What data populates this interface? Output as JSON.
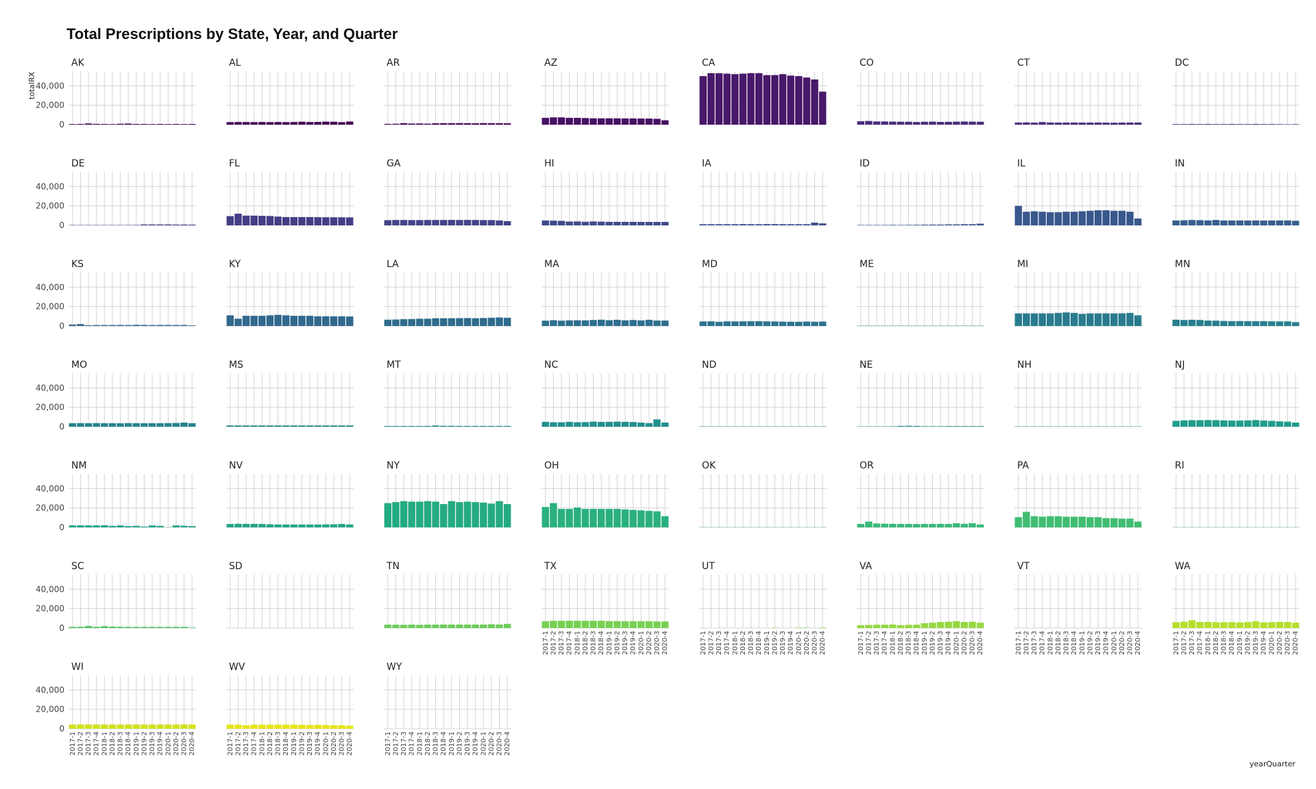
{
  "chart_data": {
    "type": "bar",
    "title": "Total Prescriptions by State, Year, and Quarter",
    "xlabel": "yearQuarter",
    "ylabel": "totalRX",
    "ylim": [
      0,
      55000
    ],
    "y_ticks": [
      0,
      20000,
      40000
    ],
    "y_tick_labels": [
      "0",
      "20,000",
      "40,000"
    ],
    "grid": true,
    "facets_per_row": 8,
    "categories": [
      "2017-1",
      "2017-2",
      "2017-3",
      "2017-4",
      "2018-1",
      "2018-2",
      "2018-3",
      "2018-4",
      "2019-1",
      "2019-2",
      "2019-3",
      "2019-4",
      "2020-1",
      "2020-2",
      "2020-3",
      "2020-4"
    ],
    "panels": [
      {
        "state": "AK",
        "color": "#440154",
        "values": [
          600,
          700,
          1200,
          800,
          700,
          600,
          900,
          1100,
          700,
          700,
          600,
          700,
          600,
          700,
          600,
          700
        ]
      },
      {
        "state": "AL",
        "color": "#440154",
        "values": [
          2600,
          2700,
          2700,
          2600,
          2700,
          2600,
          2700,
          2600,
          2700,
          3000,
          2700,
          2800,
          3100,
          3000,
          2600,
          3200
        ]
      },
      {
        "state": "AR",
        "color": "#46085c",
        "values": [
          800,
          900,
          1500,
          1100,
          1200,
          1000,
          1400,
          1500,
          1500,
          1600,
          1500,
          1400,
          1600,
          1500,
          1500,
          1400
        ]
      },
      {
        "state": "AZ",
        "color": "#471063",
        "values": [
          7000,
          7500,
          7500,
          7000,
          7000,
          6800,
          6500,
          6500,
          6500,
          6500,
          6400,
          6400,
          6300,
          6300,
          6000,
          4500
        ]
      },
      {
        "state": "CA",
        "color": "#48186a",
        "values": [
          50000,
          53000,
          53000,
          52500,
          52000,
          52500,
          53000,
          53000,
          51000,
          51000,
          52000,
          50500,
          50000,
          48500,
          46500,
          34000
        ]
      },
      {
        "state": "CO",
        "color": "#472d7b",
        "values": [
          3500,
          3800,
          3300,
          3300,
          3100,
          3000,
          3000,
          2700,
          3000,
          3100,
          2800,
          2900,
          3100,
          3200,
          3100,
          3000
        ]
      },
      {
        "state": "CT",
        "color": "#472f7d",
        "values": [
          2200,
          2300,
          2100,
          2700,
          2200,
          2100,
          2200,
          2200,
          2100,
          2100,
          2200,
          2100,
          2000,
          2100,
          2200,
          2200
        ]
      },
      {
        "state": "DC",
        "color": "#46327e",
        "values": [
          600,
          600,
          700,
          600,
          700,
          600,
          600,
          700,
          600,
          600,
          700,
          600,
          600,
          500,
          400,
          500
        ]
      },
      {
        "state": "DE",
        "color": "#453781",
        "values": [
          300,
          300,
          300,
          300,
          300,
          300,
          300,
          300,
          400,
          900,
          900,
          900,
          900,
          800,
          800,
          700
        ]
      },
      {
        "state": "FL",
        "color": "#433e85",
        "values": [
          9500,
          12000,
          10000,
          10000,
          9800,
          9600,
          9000,
          8500,
          8500,
          8500,
          8500,
          8400,
          8300,
          8300,
          8300,
          8200
        ]
      },
      {
        "state": "GA",
        "color": "#414487",
        "values": [
          5300,
          5500,
          5500,
          5400,
          5400,
          5500,
          5500,
          5500,
          5600,
          5500,
          5600,
          5500,
          5400,
          5400,
          5000,
          4300
        ]
      },
      {
        "state": "HI",
        "color": "#3f4889",
        "values": [
          5000,
          4800,
          4600,
          3900,
          4000,
          3700,
          4000,
          3800,
          3600,
          3600,
          3600,
          3600,
          3500,
          3500,
          3500,
          3500
        ]
      },
      {
        "state": "IA",
        "color": "#3d4e8a",
        "values": [
          1200,
          1200,
          1200,
          1200,
          1200,
          1300,
          1200,
          1200,
          1300,
          1300,
          1200,
          1200,
          1200,
          1200,
          2800,
          2000
        ]
      },
      {
        "state": "ID",
        "color": "#3a548c",
        "values": [
          400,
          400,
          400,
          400,
          500,
          400,
          500,
          600,
          700,
          800,
          800,
          1000,
          1000,
          1200,
          1200,
          1700
        ]
      },
      {
        "state": "IL",
        "color": "#38588c",
        "values": [
          20000,
          14000,
          14500,
          14000,
          13500,
          13500,
          14000,
          14000,
          14500,
          15000,
          15500,
          15500,
          15000,
          15000,
          14000,
          7000
        ]
      },
      {
        "state": "IN",
        "color": "#355f8d",
        "values": [
          5000,
          5200,
          5500,
          5300,
          5000,
          5500,
          5000,
          5000,
          5000,
          4900,
          5000,
          4900,
          5000,
          5000,
          5000,
          4700
        ]
      },
      {
        "state": "KS",
        "color": "#33638d",
        "values": [
          1500,
          2000,
          800,
          1000,
          1000,
          1000,
          1100,
          1000,
          1200,
          1100,
          1000,
          1100,
          1100,
          1000,
          1100,
          600
        ]
      },
      {
        "state": "KY",
        "color": "#31688e",
        "values": [
          11000,
          7500,
          10500,
          10500,
          10500,
          11000,
          11500,
          11000,
          10500,
          10500,
          10500,
          10000,
          10000,
          10000,
          10000,
          9800
        ]
      },
      {
        "state": "LA",
        "color": "#2f6b8e",
        "values": [
          6500,
          6700,
          7000,
          7200,
          7500,
          7500,
          8000,
          8000,
          8000,
          8100,
          8200,
          8000,
          8200,
          8500,
          8800,
          8500
        ]
      },
      {
        "state": "MA",
        "color": "#2e6f8e",
        "values": [
          5500,
          6000,
          5500,
          5800,
          5900,
          5800,
          6200,
          6500,
          6000,
          6400,
          5900,
          6200,
          5800,
          6400,
          5600,
          5600
        ]
      },
      {
        "state": "MD",
        "color": "#2c738e",
        "values": [
          4700,
          4800,
          4300,
          4800,
          4700,
          4800,
          4900,
          5000,
          4800,
          4700,
          4500,
          4400,
          4400,
          4600,
          4400,
          4600
        ]
      },
      {
        "state": "ME",
        "color": "#2a788e",
        "values": [
          300,
          300,
          300,
          300,
          300,
          300,
          300,
          300,
          300,
          300,
          300,
          300,
          300,
          300,
          300,
          300
        ]
      },
      {
        "state": "MI",
        "color": "#297b8e",
        "values": [
          13000,
          13000,
          13000,
          13000,
          13000,
          13500,
          14000,
          13500,
          12500,
          13000,
          13000,
          13000,
          13000,
          13000,
          13500,
          11000
        ]
      },
      {
        "state": "MN",
        "color": "#277f8e",
        "values": [
          6500,
          6200,
          6400,
          6200,
          5600,
          5500,
          5200,
          5000,
          5100,
          5000,
          5000,
          5000,
          4800,
          4700,
          4800,
          4000
        ]
      },
      {
        "state": "MO",
        "color": "#26828e",
        "values": [
          3600,
          3700,
          3600,
          3700,
          3600,
          3600,
          3500,
          3700,
          3600,
          3500,
          3600,
          3600,
          3700,
          3800,
          4200,
          3600
        ]
      },
      {
        "state": "MS",
        "color": "#24868e",
        "values": [
          1300,
          1300,
          1300,
          1300,
          1300,
          1300,
          1300,
          1300,
          1300,
          1300,
          1300,
          1300,
          1300,
          1300,
          1300,
          1300
        ]
      },
      {
        "state": "MT",
        "color": "#23898e",
        "values": [
          700,
          700,
          700,
          700,
          700,
          800,
          1200,
          900,
          900,
          800,
          800,
          800,
          800,
          800,
          800,
          800
        ]
      },
      {
        "state": "NC",
        "color": "#218e8d",
        "values": [
          5000,
          4600,
          4500,
          5000,
          4600,
          4700,
          5200,
          4900,
          5000,
          5200,
          5000,
          4800,
          4200,
          3700,
          7500,
          4200
        ]
      },
      {
        "state": "ND",
        "color": "#20928c",
        "values": [
          300,
          300,
          300,
          300,
          300,
          300,
          300,
          300,
          300,
          300,
          300,
          300,
          300,
          300,
          300,
          300
        ]
      },
      {
        "state": "NE",
        "color": "#1f958b",
        "values": [
          300,
          300,
          300,
          300,
          400,
          800,
          900,
          800,
          500,
          500,
          500,
          600,
          600,
          600,
          600,
          600
        ]
      },
      {
        "state": "NH",
        "color": "#1f998a",
        "values": [
          300,
          300,
          300,
          300,
          300,
          300,
          300,
          300,
          300,
          300,
          300,
          300,
          300,
          300,
          300,
          300
        ]
      },
      {
        "state": "NJ",
        "color": "#1f9e89",
        "values": [
          6000,
          6500,
          6700,
          6700,
          6800,
          6700,
          6500,
          6300,
          6300,
          6500,
          6800,
          6300,
          6000,
          5500,
          5200,
          4200
        ]
      },
      {
        "state": "NM",
        "color": "#20a386",
        "values": [
          2000,
          2100,
          2000,
          2000,
          2100,
          1500,
          2000,
          1300,
          1600,
          800,
          2000,
          1500,
          200,
          2000,
          1700,
          1300
        ]
      },
      {
        "state": "NV",
        "color": "#22a785",
        "values": [
          3500,
          3700,
          3600,
          3600,
          3500,
          3200,
          3000,
          3000,
          3000,
          3000,
          3000,
          3000,
          3100,
          3200,
          3500,
          3000
        ]
      },
      {
        "state": "NY",
        "color": "#25ab82",
        "values": [
          25000,
          26000,
          27000,
          26500,
          26500,
          27000,
          26500,
          24000,
          27000,
          26000,
          26500,
          26000,
          25500,
          24500,
          27000,
          24000
        ]
      },
      {
        "state": "OH",
        "color": "#2ab07f",
        "values": [
          21000,
          25000,
          19000,
          19000,
          20500,
          19000,
          19000,
          19000,
          19000,
          19000,
          18500,
          18000,
          17500,
          17000,
          16500,
          11500
        ]
      },
      {
        "state": "OK",
        "color": "#31b57b",
        "values": [
          200,
          200,
          200,
          200,
          200,
          200,
          200,
          200,
          200,
          200,
          200,
          200,
          200,
          200,
          200,
          200
        ]
      },
      {
        "state": "OR",
        "color": "#38b977",
        "values": [
          3500,
          6000,
          4000,
          3800,
          3600,
          3500,
          3500,
          3400,
          3500,
          3500,
          3600,
          3500,
          4200,
          3700,
          4300,
          3000
        ]
      },
      {
        "state": "PA",
        "color": "#40bd72",
        "values": [
          10500,
          16000,
          11500,
          11000,
          11500,
          11500,
          11000,
          11000,
          11000,
          10500,
          10500,
          9500,
          9500,
          9000,
          9000,
          6000
        ]
      },
      {
        "state": "RI",
        "color": "#4ac16d",
        "values": [
          200,
          200,
          200,
          200,
          200,
          200,
          200,
          200,
          200,
          200,
          200,
          200,
          200,
          200,
          200,
          200
        ]
      },
      {
        "state": "SC",
        "color": "#54c568",
        "values": [
          1200,
          1300,
          2200,
          1300,
          2000,
          1500,
          1300,
          1200,
          1200,
          1200,
          1200,
          1200,
          1200,
          1200,
          1300,
          500
        ]
      },
      {
        "state": "SD",
        "color": "#5ec962",
        "values": [
          0,
          0,
          0,
          0,
          0,
          0,
          0,
          0,
          0,
          0,
          0,
          0,
          0,
          0,
          0,
          0
        ]
      },
      {
        "state": "TN",
        "color": "#6ccd5a",
        "values": [
          3500,
          3400,
          3300,
          3500,
          3300,
          3500,
          3500,
          3600,
          3600,
          3600,
          3600,
          3600,
          3600,
          3900,
          3600,
          4300
        ]
      },
      {
        "state": "TX",
        "color": "#77d052",
        "values": [
          7000,
          7500,
          7500,
          7500,
          7500,
          7500,
          7500,
          7500,
          7200,
          7200,
          7000,
          7000,
          7000,
          7000,
          6800,
          6800
        ]
      },
      {
        "state": "UT",
        "color": "#86d549",
        "values": [
          0,
          0,
          0,
          0,
          0,
          0,
          0,
          0,
          0,
          400,
          0,
          0,
          400,
          400,
          0,
          500
        ]
      },
      {
        "state": "VA",
        "color": "#95d840",
        "values": [
          3000,
          3200,
          3400,
          3400,
          3600,
          3000,
          3300,
          3500,
          5000,
          5500,
          6200,
          6500,
          7000,
          6200,
          6500,
          5500
        ]
      },
      {
        "state": "VT",
        "color": "#a5db36",
        "values": [
          100,
          100,
          100,
          100,
          100,
          100,
          100,
          100,
          100,
          100,
          100,
          100,
          100,
          100,
          100,
          100
        ]
      },
      {
        "state": "WA",
        "color": "#b5de2b",
        "values": [
          6000,
          6500,
          8000,
          6200,
          6300,
          6000,
          6000,
          6100,
          5800,
          6200,
          7000,
          5800,
          6000,
          6300,
          6200,
          5500
        ]
      },
      {
        "state": "WI",
        "color": "#d3e21b",
        "values": [
          4200,
          4400,
          4300,
          4300,
          4300,
          4300,
          4300,
          4300,
          4300,
          4300,
          4300,
          4300,
          4300,
          4300,
          4400,
          4300
        ]
      },
      {
        "state": "WV",
        "color": "#e5e419",
        "values": [
          4200,
          4200,
          3500,
          4200,
          4200,
          4200,
          4200,
          4200,
          4200,
          4000,
          3800,
          4000,
          3800,
          3600,
          3600,
          3200
        ]
      },
      {
        "state": "WY",
        "color": "#e8e419",
        "values": [
          0,
          0,
          0,
          0,
          0,
          0,
          0,
          0,
          0,
          0,
          0,
          0,
          0,
          0,
          0,
          0
        ]
      }
    ]
  }
}
